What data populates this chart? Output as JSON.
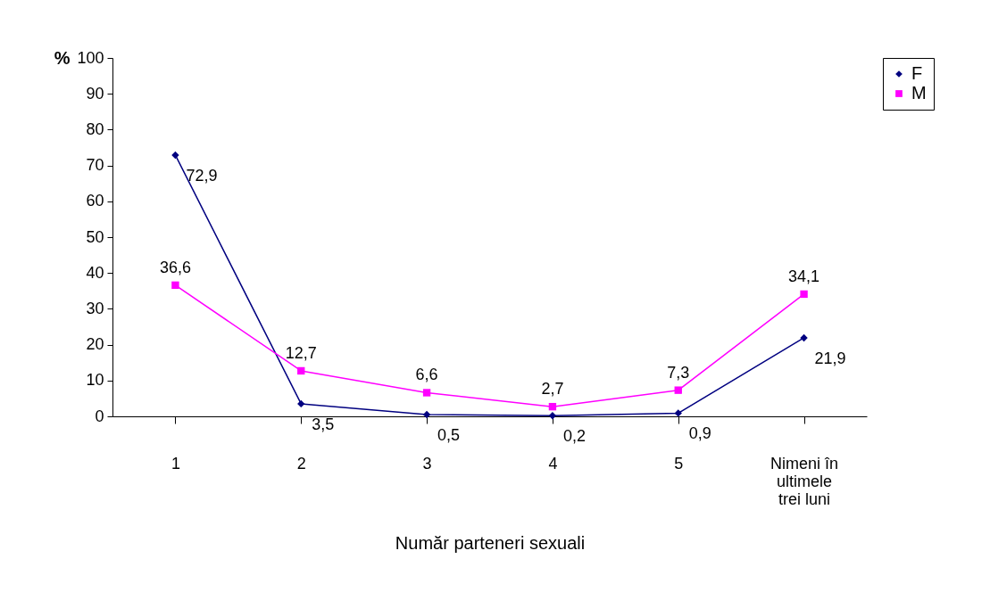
{
  "chart_data": {
    "type": "line",
    "xlabel": "Număr parteneri sexuali",
    "ylabel": "%",
    "categories": [
      "1",
      "2",
      "3",
      "4",
      "5",
      "Nimeni în ultimele trei luni"
    ],
    "series": [
      {
        "name": "F",
        "color": "#000080",
        "marker": "diamond",
        "values": [
          72.9,
          3.5,
          0.5,
          0.2,
          0.9,
          21.9
        ],
        "value_labels": [
          "72,9",
          "3,5",
          "0,5",
          "0,2",
          "0,9",
          "21,9"
        ]
      },
      {
        "name": "M",
        "color": "#ff00ff",
        "marker": "square",
        "values": [
          36.6,
          12.7,
          6.6,
          2.7,
          7.3,
          34.1
        ],
        "value_labels": [
          "36,6",
          "12,7",
          "6,6",
          "2,7",
          "7,3",
          "34,1"
        ]
      }
    ],
    "ylim": [
      0,
      100
    ],
    "yticks": [
      0,
      10,
      20,
      30,
      40,
      50,
      60,
      70,
      80,
      90,
      100
    ],
    "grid": false,
    "legend": "right"
  }
}
